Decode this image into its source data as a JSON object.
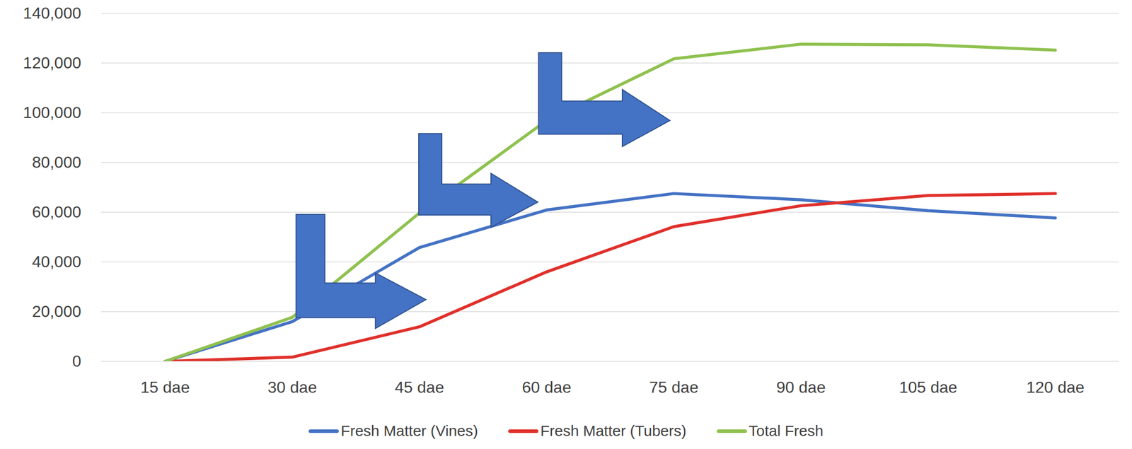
{
  "chart_data": {
    "type": "line",
    "categories": [
      "15 dae",
      "30 dae",
      "45 dae",
      "60 dae",
      "75 dae",
      "90 dae",
      "105 dae",
      "120 dae"
    ],
    "series": [
      {
        "name": "Fresh Matter (Vines)",
        "color": "#4472c4",
        "values": [
          0,
          16000,
          45800,
          60900,
          67500,
          65000,
          60600,
          57700
        ]
      },
      {
        "name": "Fresh Matter (Tubers)",
        "color": "#e0302b",
        "values": [
          0,
          1700,
          13900,
          36000,
          54200,
          62600,
          66700,
          67500
        ]
      },
      {
        "name": "Total Fresh",
        "color": "#8fc14f",
        "values": [
          0,
          17700,
          59700,
          96900,
          121700,
          127600,
          127300,
          125200
        ]
      }
    ],
    "ylim": [
      0,
      140000
    ],
    "yticks": [
      0,
      {
        "value": 20000,
        "label": "20,000"
      },
      {
        "value": 40000,
        "label": "40,000"
      },
      {
        "value": 60000,
        "label": "60,000"
      },
      {
        "value": 80000,
        "label": "80,000"
      },
      {
        "value": 100000,
        "label": "100,000"
      },
      {
        "value": 120000,
        "label": "120,000"
      },
      {
        "value": 140000,
        "label": "140,000"
      }
    ],
    "grid": true,
    "legend": "bottom"
  }
}
